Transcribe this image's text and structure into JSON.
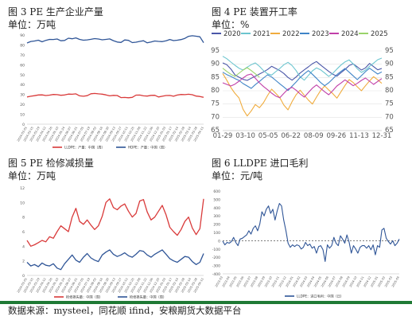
{
  "footer": {
    "source": "数据来源：mysteel，同花顺 ifind，安粮期货大数据平台"
  },
  "chart_data": [
    {
      "type": "line",
      "title": "图 3 PE 生产企业产量",
      "unit": "单位：万吨",
      "ylim": [
        0,
        90
      ],
      "yticks": [
        "0",
        "10",
        "20",
        "30",
        "40",
        "50",
        "60",
        "70",
        "80",
        "90"
      ],
      "xticks": [
        "2024-03-01",
        "2024-03-15",
        "2024-03-29",
        "2024-04-12",
        "2024-04-26",
        "2024-05-10",
        "2024-05-24",
        "2024-06-07",
        "2024-06-21",
        "2024-07-05",
        "2024-07-19",
        "2024-08-02",
        "2024-08-16",
        "2024-08-30",
        "2024-09-13",
        "2024-09-27",
        "2024-10-11",
        "2024-10-25",
        "2024-11-08",
        "2024-11-22",
        "2024-12-06",
        "2024-12-20",
        "2025-01-03",
        "2025-01-17",
        "2025-02-14",
        "2025-02-28",
        "2025-03-14",
        "2025-03-28",
        "2025-04-11"
      ],
      "series": [
        {
          "name": "LLDPE：产量：中国（周）",
          "color": "#d93a3a",
          "values": [
            27.5,
            28.2,
            28.8,
            29.5,
            29.6,
            28.9,
            29.3,
            30.0,
            29.8,
            29.2,
            29.5,
            30.4,
            30.2,
            30.6,
            28.6,
            28.2,
            28.8,
            30.7,
            31.0,
            30.6,
            30.3,
            29.6,
            28.6,
            29.1,
            28.9,
            26.8,
            27.0,
            26.7,
            27.1,
            29.3,
            29.4,
            28.6,
            28.4,
            29.1,
            29.2,
            27.5,
            28.2,
            28.9,
            29.0,
            28.2,
            29.4,
            30.0,
            29.8,
            30.2,
            29.7,
            28.4,
            28.0,
            27.1
          ]
        },
        {
          "name": "HDPE：产量：中国（周）",
          "color": "#2f5597",
          "values": [
            82.0,
            83.5,
            84.0,
            84.8,
            83.2,
            84.6,
            85.6,
            85.5,
            86.0,
            84.2,
            84.5,
            86.8,
            86.2,
            87.1,
            85.6,
            84.8,
            85.1,
            85.7,
            86.4,
            86.0,
            85.2,
            85.6,
            86.1,
            84.3,
            82.9,
            82.5,
            85.0,
            84.6,
            82.4,
            82.8,
            83.6,
            84.2,
            82.1,
            83.0,
            84.0,
            83.6,
            83.3,
            84.2,
            85.5,
            84.4,
            84.8,
            85.4,
            86.6,
            88.7,
            89.3,
            88.8,
            88.2,
            82.3
          ]
        }
      ]
    },
    {
      "type": "line",
      "title": "图 4 PE 装置开工率",
      "unit": "单位：%",
      "ylim": [
        65,
        95
      ],
      "yticks": [
        "65",
        "70",
        "75",
        "80",
        "85",
        "90",
        "95"
      ],
      "xticks": [
        "01-29",
        "03-10",
        "05-05",
        "06-22",
        "08-09",
        "09-26",
        "11-13",
        "12-31"
      ],
      "series": [
        {
          "name": "2020",
          "color": "#4a57a8",
          "values": [
            90.5,
            89.8,
            88.2,
            86.0,
            85.1,
            84.3,
            83.9,
            84.7,
            85.5,
            86.3,
            87.1,
            88.0,
            89.2,
            88.4,
            87.6,
            86.5,
            85.0,
            84.0,
            85.2,
            86.7,
            87.9,
            89.0,
            90.2,
            91.0,
            89.7,
            88.5,
            87.3,
            86.2,
            85.5,
            86.8,
            88.0,
            89.5,
            90.1,
            89.0,
            87.8,
            88.6,
            90.3,
            89.1,
            87.9,
            88.4
          ]
        },
        {
          "name": "2021",
          "color": "#6cc5cf",
          "values": [
            93.0,
            92.1,
            90.8,
            89.6,
            88.5,
            87.8,
            88.9,
            89.8,
            90.5,
            89.2,
            87.6,
            86.4,
            85.9,
            87.2,
            88.4,
            89.8,
            90.7,
            89.5,
            87.6,
            85.2,
            84.0,
            85.8,
            87.5,
            88.6,
            87.9,
            86.7,
            85.4,
            86.6,
            88.2,
            89.7,
            90.9,
            91.6,
            90.1,
            88.3,
            86.9,
            87.8,
            89.2,
            90.4,
            91.7,
            92.3
          ]
        },
        {
          "name": "2022",
          "color": "#f0ac3e",
          "values": [
            86.5,
            84.0,
            81.2,
            79.0,
            77.3,
            73.0,
            70.5,
            72.4,
            74.8,
            73.6,
            75.5,
            78.2,
            80.6,
            79.0,
            77.4,
            74.6,
            72.8,
            75.9,
            78.5,
            80.2,
            78.3,
            76.5,
            75.0,
            77.6,
            80.1,
            81.8,
            80.3,
            78.9,
            77.2,
            79.6,
            82.0,
            84.2,
            83.1,
            81.5,
            80.0,
            81.9,
            83.7,
            85.3,
            84.1,
            82.8
          ]
        },
        {
          "name": "2023",
          "color": "#3f84c7",
          "values": [
            87.0,
            86.1,
            85.4,
            84.6,
            83.9,
            82.7,
            81.8,
            80.9,
            82.3,
            83.5,
            84.8,
            86.0,
            85.2,
            83.9,
            82.6,
            81.4,
            80.1,
            81.7,
            83.3,
            85.0,
            86.4,
            87.6,
            86.2,
            84.7,
            83.1,
            81.9,
            83.0,
            84.5,
            86.1,
            87.3,
            88.4,
            87.0,
            85.6,
            84.2,
            85.7,
            87.2,
            88.5,
            87.4,
            86.3,
            87.1
          ]
        },
        {
          "name": "2024",
          "color": "#c13fa8",
          "values": [
            83.0,
            82.4,
            81.8,
            82.5,
            83.6,
            84.8,
            85.9,
            86.3,
            84.7,
            83.0,
            81.6,
            80.4,
            79.1,
            78.0,
            77.4,
            79.0,
            80.6,
            81.3,
            80.2,
            78.8,
            77.6,
            79.3,
            81.0,
            82.2,
            80.9,
            79.6,
            78.5,
            80.1,
            81.8,
            82.9,
            84.1,
            83.0,
            81.9,
            82.8,
            83.9,
            84.8,
            83.6,
            82.4,
            83.5,
            84.6
          ]
        },
        {
          "name": "2025",
          "color": "#9ad36a",
          "values": [
            88.5,
            87.3,
            86.2,
            85.4,
            86.6,
            87.8,
            88.7,
            87.6,
            86.4,
            85.1
          ]
        }
      ]
    },
    {
      "type": "line",
      "title": "图 5 PE 检修减损量",
      "unit": "单位：万吨",
      "ylim": [
        0,
        12
      ],
      "yticks": [
        "0",
        "2",
        "4",
        "6",
        "8",
        "10",
        "12"
      ],
      "xticks": [
        "2024-03-01",
        "2024-03-15",
        "2024-03-29",
        "2024-04-12",
        "2024-04-26",
        "2024-05-10",
        "2024-05-24",
        "2024-06-07",
        "2024-06-21",
        "2024-07-05",
        "2024-07-19",
        "2024-08-02",
        "2024-08-16",
        "2024-08-30",
        "2024-09-13",
        "2024-09-27",
        "2024-10-11",
        "2024-10-25",
        "2024-11-08",
        "2024-11-22",
        "2024-12-06",
        "2024-12-20",
        "2025-01-03",
        "2025-01-17",
        "2025-02-14",
        "2025-02-28",
        "2025-03-14",
        "2025-03-28",
        "2025-04-11"
      ],
      "series": [
        {
          "name": "检修损失量：中国（周）",
          "color": "#d93a3a",
          "values": [
            4.8,
            4.0,
            4.2,
            4.5,
            4.8,
            4.6,
            5.3,
            5.1,
            6.0,
            6.8,
            6.4,
            6.0,
            8.0,
            9.2,
            7.4,
            7.0,
            7.6,
            6.9,
            6.3,
            6.8,
            8.1,
            10.0,
            10.5,
            9.3,
            9.0,
            9.5,
            9.8,
            8.8,
            8.0,
            8.5,
            10.2,
            10.4,
            8.7,
            7.6,
            8.0,
            8.8,
            9.6,
            8.3,
            6.6,
            6.0,
            5.5,
            6.3,
            7.4,
            8.0,
            6.5,
            5.6,
            6.4,
            10.5
          ]
        },
        {
          "name": "检修损失量：中国（周）",
          "color": "#2f5597",
          "values": [
            1.8,
            1.3,
            1.5,
            1.2,
            1.7,
            1.4,
            1.3,
            1.6,
            1.0,
            0.8,
            1.6,
            2.2,
            2.8,
            2.1,
            1.8,
            2.5,
            3.0,
            2.4,
            2.1,
            1.9,
            2.8,
            3.2,
            3.5,
            2.9,
            2.6,
            2.8,
            3.1,
            2.7,
            2.5,
            2.9,
            3.4,
            3.3,
            2.8,
            2.5,
            2.9,
            3.2,
            3.5,
            2.9,
            2.3,
            2.0,
            1.8,
            2.2,
            2.6,
            2.5,
            1.9,
            1.5,
            1.8,
            3.0
          ]
        }
      ]
    },
    {
      "type": "line",
      "title": "图 6 LLDPE 进口毛利",
      "unit": "单位：元/吨",
      "ylim": [
        -400,
        600
      ],
      "yticks": [
        "-400",
        "-300",
        "-200",
        "-100",
        "0",
        "100",
        "200",
        "300",
        "400",
        "500",
        "600"
      ],
      "xticks": [
        "2023-03",
        "2023-04",
        "2023-05",
        "2023-06",
        "2023-07",
        "2023-08",
        "2023-09",
        "2023-10",
        "2023-11",
        "2023-12",
        "2024-01",
        "2024-02",
        "2024-03",
        "2024-04",
        "2024-05",
        "2024-06",
        "2024-07",
        "2024-08",
        "2024-09",
        "2024-10",
        "2024-11",
        "2024-12",
        "2025-01",
        "2025-02",
        "2025-03",
        "2025-04"
      ],
      "series": [
        {
          "name": "LLDPE：进口毛利：中国（日）",
          "color": "#2f5597",
          "values": [
            -5,
            -50,
            -20,
            -30,
            -10,
            40,
            -20,
            -60,
            20,
            30,
            50,
            70,
            120,
            80,
            150,
            180,
            120,
            200,
            350,
            300,
            380,
            420,
            330,
            380,
            250,
            360,
            450,
            420,
            250,
            120,
            -30,
            -80,
            -50,
            -70,
            -50,
            -60,
            -100,
            -80,
            -20,
            -60,
            -40,
            -90,
            -70,
            -150,
            -70,
            -60,
            -110,
            -250,
            -50,
            -90,
            -60,
            40,
            -30,
            -60,
            60,
            20,
            -30,
            70,
            -20,
            -150,
            -60,
            -100,
            -150,
            -80,
            -60,
            -60,
            -90,
            -60,
            -110,
            -50,
            -170,
            -60,
            -80,
            130,
            150,
            30,
            -10,
            -40,
            0,
            -60,
            -30,
            20
          ]
        }
      ]
    }
  ]
}
